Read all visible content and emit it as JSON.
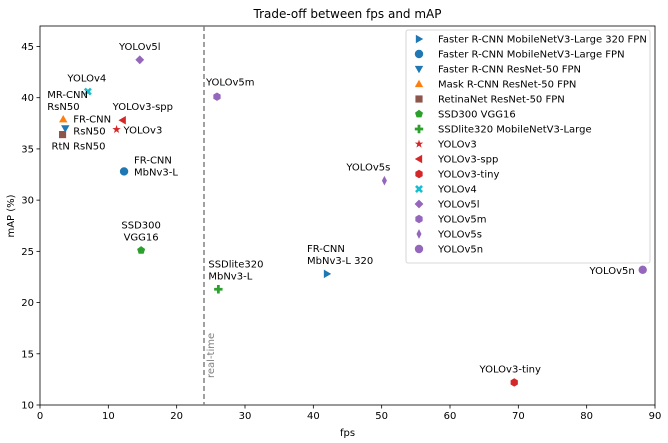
{
  "chart_data": {
    "type": "scatter",
    "title": "Trade-off between fps and mAP",
    "xlabel": "fps",
    "ylabel": "mAP (%)",
    "xlim": [
      0,
      90
    ],
    "ylim": [
      10,
      47
    ],
    "xticks": [
      0,
      10,
      20,
      30,
      40,
      50,
      60,
      70,
      80,
      90
    ],
    "yticks": [
      10,
      15,
      20,
      25,
      30,
      35,
      40,
      45
    ],
    "grid": false,
    "legend_position": "top-right",
    "reference_line": {
      "x": 24,
      "label": "real-time",
      "color": "#808080"
    },
    "series": [
      {
        "name": "Faster R-CNN MobileNetV3-Large 320 FPN",
        "marker": "triangle-right",
        "color": "#1f77b4",
        "x": 42,
        "y": 22.8
      },
      {
        "name": "Faster R-CNN MobileNetV3-Large FPN",
        "marker": "circle",
        "color": "#1f77b4",
        "x": 12.3,
        "y": 32.8
      },
      {
        "name": "Faster R-CNN ResNet-50 FPN",
        "marker": "triangle-down",
        "color": "#1f77b4",
        "x": 3.7,
        "y": 37.0
      },
      {
        "name": "Mask R-CNN ResNet-50 FPN",
        "marker": "triangle-up",
        "color": "#ff7f0e",
        "x": 3.4,
        "y": 37.9
      },
      {
        "name": "RetinaNet ResNet-50 FPN",
        "marker": "square",
        "color": "#8c564b",
        "x": 3.3,
        "y": 36.4
      },
      {
        "name": "SSD300 VGG16",
        "marker": "pentagon",
        "color": "#2ca02c",
        "x": 14.8,
        "y": 25.1
      },
      {
        "name": "SSDlite320 MobileNetV3-Large",
        "marker": "plus",
        "color": "#2ca02c",
        "x": 26.1,
        "y": 21.3
      },
      {
        "name": "YOLOv3",
        "marker": "star",
        "color": "#d62728",
        "x": 11.2,
        "y": 36.9
      },
      {
        "name": "YOLOv3-spp",
        "marker": "triangle-left",
        "color": "#d62728",
        "x": 12.1,
        "y": 37.8
      },
      {
        "name": "YOLOv3-tiny",
        "marker": "hexagon",
        "color": "#d62728",
        "x": 69.4,
        "y": 12.2
      },
      {
        "name": "YOLOv4",
        "marker": "x",
        "color": "#17becf",
        "x": 7.0,
        "y": 40.6
      },
      {
        "name": "YOLOv5l",
        "marker": "diamond",
        "color": "#9467bd",
        "x": 14.6,
        "y": 43.7
      },
      {
        "name": "YOLOv5m",
        "marker": "hexagon",
        "color": "#9467bd",
        "x": 25.9,
        "y": 40.1
      },
      {
        "name": "YOLOv5s",
        "marker": "thin-diamond",
        "color": "#9467bd",
        "x": 50.4,
        "y": 31.9
      },
      {
        "name": "YOLOv5n",
        "marker": "circle",
        "color": "#9467bd",
        "x": 88.2,
        "y": 23.2
      }
    ],
    "annotations": [
      {
        "lines": [
          "YOLOv5l"
        ],
        "x": 14.6,
        "y": 43.7,
        "anchor": "middle",
        "dx": 0,
        "dy": -10
      },
      {
        "lines": [
          "YOLOv4"
        ],
        "x": 7.0,
        "y": 40.6,
        "anchor": "middle",
        "dx": -1,
        "dy": -10
      },
      {
        "lines": [
          "YOLOv5m"
        ],
        "x": 25.9,
        "y": 40.1,
        "anchor": "start",
        "dx": -11,
        "dy": -11
      },
      {
        "lines": [
          "MR-CNN",
          "RsN50"
        ],
        "x": 3.4,
        "y": 37.9,
        "anchor": "start",
        "dx": -16,
        "dy": -21
      },
      {
        "lines": [
          "YOLOv3-spp"
        ],
        "x": 12.1,
        "y": 37.8,
        "anchor": "start",
        "dx": -10,
        "dy": -10
      },
      {
        "lines": [
          "FR-CNN",
          "RsN50"
        ],
        "x": 3.7,
        "y": 37.0,
        "anchor": "start",
        "dx": 8,
        "dy": -6
      },
      {
        "lines": [
          "YOLOv3"
        ],
        "x": 11.2,
        "y": 36.9,
        "anchor": "start",
        "dx": 7,
        "dy": 4
      },
      {
        "lines": [
          "RtN RsN50"
        ],
        "x": 3.3,
        "y": 36.4,
        "anchor": "start",
        "dx": -11,
        "dy": 15
      },
      {
        "lines": [
          "FR-CNN",
          "MbNv3-L"
        ],
        "x": 12.3,
        "y": 32.8,
        "anchor": "start",
        "dx": 10,
        "dy": -8
      },
      {
        "lines": [
          "YOLOv5s"
        ],
        "x": 50.4,
        "y": 31.9,
        "anchor": "end",
        "dx": 6,
        "dy": -10
      },
      {
        "lines": [
          "SSD300",
          "VGG16"
        ],
        "x": 14.8,
        "y": 25.1,
        "anchor": "middle",
        "dx": 0,
        "dy": -22
      },
      {
        "lines": [
          "FR-CNN",
          "MbNv3-L 320"
        ],
        "x": 42,
        "y": 22.8,
        "anchor": "start",
        "dx": -20,
        "dy": -22
      },
      {
        "lines": [
          "SSDlite320",
          "MbNv3-L"
        ],
        "x": 26.1,
        "y": 21.3,
        "anchor": "start",
        "dx": -10,
        "dy": -22
      },
      {
        "lines": [
          "YOLOv5n"
        ],
        "x": 88.2,
        "y": 23.2,
        "anchor": "end",
        "dx": -8,
        "dy": 4
      },
      {
        "lines": [
          "YOLOv3-tiny"
        ],
        "x": 69.4,
        "y": 12.2,
        "anchor": "middle",
        "dx": -4,
        "dy": -10
      }
    ]
  }
}
